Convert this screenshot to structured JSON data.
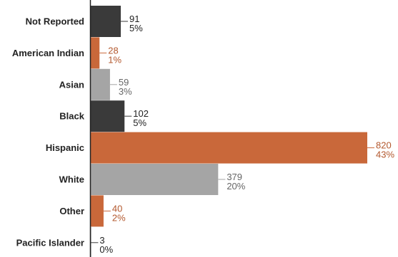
{
  "chart_data": {
    "type": "bar",
    "orientation": "horizontal",
    "categories": [
      "Not Reported",
      "American Indian",
      "Asian",
      "Black",
      "Hispanic",
      "White",
      "Other",
      "Pacific Islander"
    ],
    "values": [
      91,
      28,
      59,
      102,
      820,
      379,
      40,
      3
    ],
    "percent_labels": [
      "5%",
      "1%",
      "3%",
      "5%",
      "43%",
      "20%",
      "2%",
      "0%"
    ],
    "bar_colors": [
      "#3a3a3a",
      "#c9683a",
      "#a5a5a5",
      "#3a3a3a",
      "#c9683a",
      "#a5a5a5",
      "#c9683a",
      "#3a3a3a"
    ],
    "label_colors": [
      "#222222",
      "#b3582e",
      "#666666",
      "#222222",
      "#b3582e",
      "#666666",
      "#b3582e",
      "#222222"
    ],
    "title": "",
    "xlabel": "",
    "ylabel": "",
    "xlim": [
      0,
      820
    ],
    "grid": false,
    "legend": "none"
  }
}
